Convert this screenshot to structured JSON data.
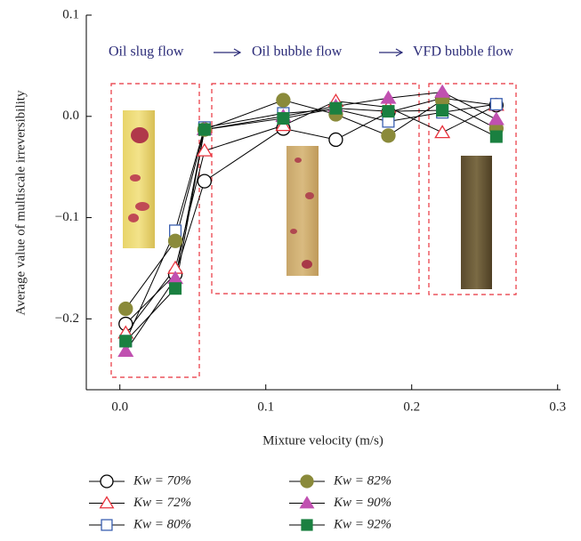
{
  "chart_data": {
    "type": "line",
    "xlabel": "Mixture velocity (m/s)",
    "ylabel": "Average value of multiscale irreversibility",
    "annotations": [
      "Oil slug flow",
      "Oil bubble flow",
      "VFD bubble flow"
    ],
    "x": [
      0.004,
      0.038,
      0.058,
      0.112,
      0.148,
      0.184,
      0.221,
      0.258
    ],
    "xlim": [
      -0.023,
      0.302
    ],
    "xticks": [
      {
        "value": 0,
        "label": "0.0"
      },
      0.1,
      0.2,
      0.3
    ],
    "ylim": [
      -0.27,
      0.1
    ],
    "yticks": [
      0.1,
      {
        "value": 0,
        "label": "0.0"
      },
      {
        "value": -0.1,
        "label": "−0.1"
      },
      {
        "value": -0.2,
        "label": "−0.2"
      }
    ],
    "series": [
      {
        "name": "Kw = 70%",
        "color": "#000000",
        "marker": "circle",
        "filled": false,
        "values": [
          -0.205,
          -0.156,
          -0.064,
          -0.012,
          -0.023,
          0.004,
          0.018,
          0.011
        ]
      },
      {
        "name": "Kw = 72%",
        "color": "#e8323c",
        "marker": "triangle",
        "filled": false,
        "values": [
          -0.214,
          -0.15,
          -0.034,
          -0.009,
          0.015,
          0.009,
          -0.016,
          0.011
        ]
      },
      {
        "name": "Kw = 80%",
        "color": "#3a5fb0",
        "marker": "square",
        "filled": false,
        "values": [
          -0.222,
          -0.113,
          -0.011,
          0.003,
          0.007,
          -0.005,
          0.004,
          0.012
        ]
      },
      {
        "name": "Kw = 82%",
        "color": "#8a8a3a",
        "marker": "circle",
        "filled": true,
        "values": [
          -0.19,
          -0.123,
          -0.013,
          0.016,
          0.002,
          -0.019,
          0.016,
          -0.012
        ]
      },
      {
        "name": "Kw = 90%",
        "color": "#c050b0",
        "marker": "triangle",
        "filled": true,
        "values": [
          -0.232,
          -0.16,
          -0.013,
          0.0,
          0.01,
          0.018,
          0.024,
          -0.003
        ]
      },
      {
        "name": "Kw = 92%",
        "color": "#1a8040",
        "marker": "square",
        "filled": true,
        "values": [
          -0.222,
          -0.17,
          -0.013,
          -0.002,
          0.008,
          0.005,
          0.006,
          -0.02
        ]
      }
    ]
  }
}
